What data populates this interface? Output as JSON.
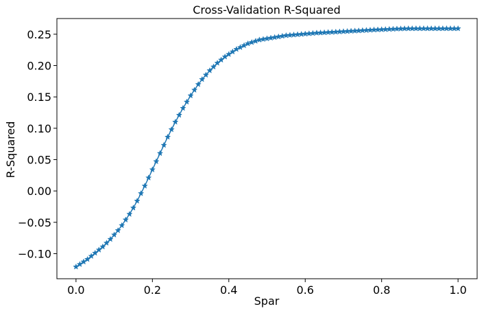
{
  "chart_data": {
    "type": "line",
    "title": "Cross-Validation R-Squared",
    "xlabel": "Spar",
    "ylabel": "R-Squared",
    "xlim": [
      -0.05,
      1.05
    ],
    "ylim": [
      -0.14,
      0.275
    ],
    "xticks": [
      0.0,
      0.2,
      0.4,
      0.6,
      0.8,
      1.0
    ],
    "xtick_labels": [
      "0.0",
      "0.2",
      "0.4",
      "0.6",
      "0.8",
      "1.0"
    ],
    "yticks": [
      -0.1,
      -0.05,
      0.0,
      0.05,
      0.1,
      0.15,
      0.2,
      0.25
    ],
    "ytick_labels": [
      "−0.10",
      "−0.05",
      "0.00",
      "0.05",
      "0.10",
      "0.15",
      "0.20",
      "0.25"
    ],
    "grid": false,
    "marker": "star",
    "color": "#1f77b4",
    "series": [
      {
        "x": [
          0.0,
          0.01,
          0.02,
          0.03,
          0.04,
          0.05,
          0.06,
          0.07,
          0.08,
          0.09,
          0.1,
          0.11,
          0.12,
          0.13,
          0.14,
          0.15,
          0.16,
          0.17,
          0.18,
          0.19,
          0.2,
          0.21,
          0.22,
          0.23,
          0.24,
          0.25,
          0.26,
          0.27,
          0.28,
          0.29,
          0.3,
          0.31,
          0.32,
          0.33,
          0.34,
          0.35,
          0.36,
          0.37,
          0.38,
          0.39,
          0.4,
          0.41,
          0.42,
          0.43,
          0.44,
          0.45,
          0.46,
          0.47,
          0.48,
          0.49,
          0.5,
          0.51,
          0.52,
          0.53,
          0.54,
          0.55,
          0.56,
          0.57,
          0.58,
          0.59,
          0.6,
          0.61,
          0.62,
          0.63,
          0.64,
          0.65,
          0.66,
          0.67,
          0.68,
          0.69,
          0.7,
          0.71,
          0.72,
          0.73,
          0.74,
          0.75,
          0.76,
          0.77,
          0.78,
          0.79,
          0.8,
          0.81,
          0.82,
          0.83,
          0.84,
          0.85,
          0.86,
          0.87,
          0.88,
          0.89,
          0.9,
          0.91,
          0.92,
          0.93,
          0.94,
          0.95,
          0.96,
          0.97,
          0.98,
          0.99,
          1.0
        ],
        "y": [
          -0.121,
          -0.117,
          -0.113,
          -0.109,
          -0.104,
          -0.099,
          -0.094,
          -0.089,
          -0.083,
          -0.077,
          -0.07,
          -0.063,
          -0.055,
          -0.046,
          -0.037,
          -0.027,
          -0.016,
          -0.004,
          0.008,
          0.021,
          0.034,
          0.047,
          0.06,
          0.073,
          0.086,
          0.098,
          0.11,
          0.121,
          0.132,
          0.142,
          0.152,
          0.161,
          0.17,
          0.178,
          0.185,
          0.192,
          0.198,
          0.204,
          0.209,
          0.214,
          0.218,
          0.222,
          0.226,
          0.229,
          0.232,
          0.235,
          0.237,
          0.239,
          0.241,
          0.242,
          0.243,
          0.244,
          0.245,
          0.246,
          0.247,
          0.248,
          0.2485,
          0.249,
          0.2495,
          0.25,
          0.2505,
          0.251,
          0.2515,
          0.252,
          0.2523,
          0.2526,
          0.253,
          0.2533,
          0.2536,
          0.254,
          0.2543,
          0.2546,
          0.255,
          0.2553,
          0.2556,
          0.256,
          0.2563,
          0.2566,
          0.257,
          0.2572,
          0.2575,
          0.2577,
          0.258,
          0.2582,
          0.2585,
          0.2587,
          0.2589,
          0.259,
          0.259,
          0.259,
          0.259,
          0.259,
          0.259,
          0.259,
          0.259,
          0.259,
          0.259,
          0.259,
          0.259,
          0.259,
          0.259
        ]
      }
    ]
  }
}
